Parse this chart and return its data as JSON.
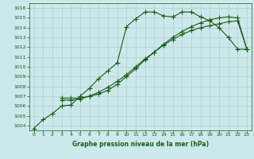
{
  "title": "Graphe pression niveau de la mer (hPa)",
  "background_color": "#cce8ea",
  "grid_color": "#b0d0d0",
  "line_color": "#1a5c1a",
  "xlim": [
    -0.5,
    23.5
  ],
  "ylim": [
    1003.5,
    1016.5
  ],
  "yticks": [
    1004,
    1005,
    1006,
    1007,
    1008,
    1009,
    1010,
    1011,
    1012,
    1013,
    1014,
    1015,
    1016
  ],
  "xticks": [
    0,
    1,
    2,
    3,
    4,
    5,
    6,
    7,
    8,
    9,
    10,
    11,
    12,
    13,
    14,
    15,
    16,
    17,
    18,
    19,
    20,
    21,
    22,
    23
  ],
  "line1_x": [
    0,
    1,
    2,
    3,
    4,
    5,
    6,
    7,
    8,
    9,
    10,
    11,
    12,
    13,
    14,
    15,
    16,
    17,
    18,
    19,
    20,
    21,
    22,
    23
  ],
  "line1_y": [
    1003.7,
    1004.6,
    1005.2,
    1006.0,
    1006.1,
    1007.0,
    1007.8,
    1008.8,
    1009.6,
    1010.4,
    1014.1,
    1014.9,
    1015.6,
    1015.6,
    1015.2,
    1015.1,
    1015.6,
    1015.6,
    1015.1,
    1014.7,
    1014.0,
    1013.0,
    1011.8,
    1011.8
  ],
  "line2_x": [
    3,
    4,
    5,
    6,
    7,
    8,
    9,
    10,
    11,
    12,
    13,
    14,
    15,
    16,
    17,
    18,
    19,
    20,
    21,
    22,
    23
  ],
  "line2_y": [
    1006.6,
    1006.6,
    1006.7,
    1007.0,
    1007.4,
    1007.9,
    1008.5,
    1009.2,
    1010.0,
    1010.8,
    1011.5,
    1012.2,
    1012.8,
    1013.3,
    1013.7,
    1014.0,
    1014.2,
    1014.4,
    1014.6,
    1014.7,
    1011.8
  ],
  "line3_x": [
    3,
    4,
    5,
    6,
    7,
    8,
    9,
    10,
    11,
    12,
    13,
    14,
    15,
    16,
    17,
    18,
    19,
    20,
    21,
    22,
    23
  ],
  "line3_y": [
    1006.8,
    1006.8,
    1006.8,
    1007.0,
    1007.2,
    1007.6,
    1008.2,
    1009.0,
    1009.8,
    1010.7,
    1011.5,
    1012.3,
    1013.0,
    1013.6,
    1014.1,
    1014.5,
    1014.8,
    1015.0,
    1015.1,
    1015.0,
    1011.8
  ]
}
